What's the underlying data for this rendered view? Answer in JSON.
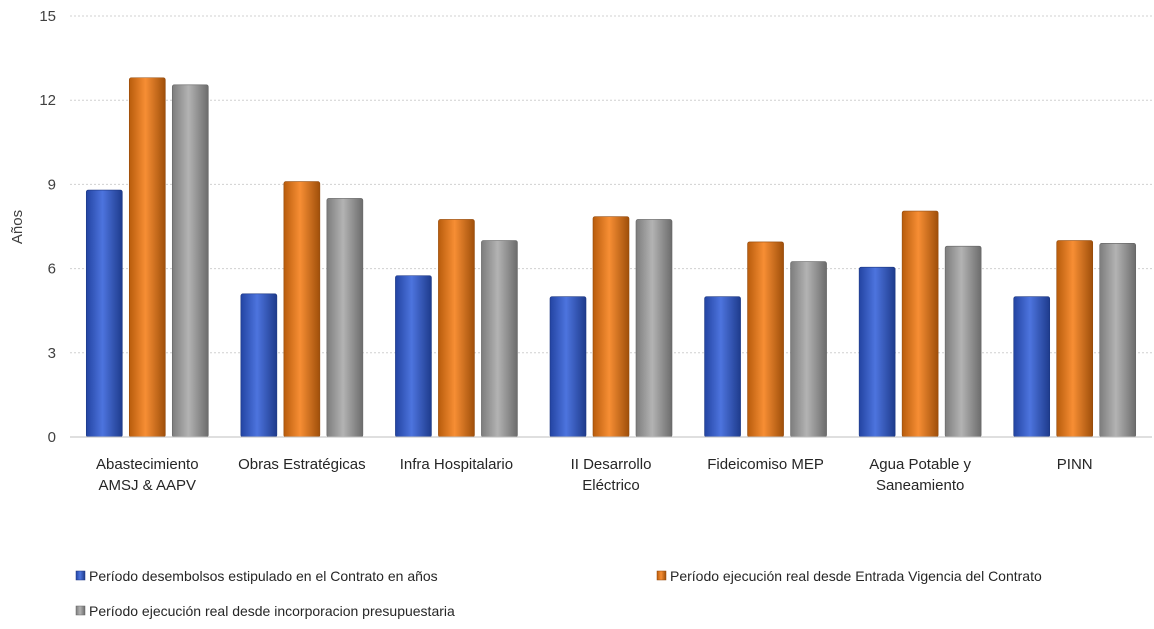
{
  "chart_data": {
    "type": "bar",
    "title": "",
    "xlabel": "",
    "ylabel": "Años",
    "ylim": [
      0,
      15
    ],
    "yticks": [
      0,
      3,
      6,
      9,
      12,
      15
    ],
    "grid": true,
    "legend_position": "bottom",
    "categories": [
      [
        "Abastecimiento",
        "AMSJ & AAPV"
      ],
      [
        "Obras Estratégicas"
      ],
      [
        "Infra Hospitalario"
      ],
      [
        "II Desarrollo",
        "Eléctrico"
      ],
      [
        "Fideicomiso MEP"
      ],
      [
        "Agua Potable y",
        "Saneamiento"
      ],
      [
        "PINN"
      ]
    ],
    "series": [
      {
        "name": "Período desembolsos estipulado en el Contrato en años",
        "color": "#2E5BD8",
        "values": [
          8.8,
          5.1,
          5.75,
          5.0,
          5.0,
          6.05,
          5.0
        ]
      },
      {
        "name": "Período ejecución real desde Entrada Vigencia del Contrato",
        "color": "#F57A10",
        "values": [
          12.8,
          9.1,
          7.75,
          7.85,
          6.95,
          8.05,
          7.0
        ]
      },
      {
        "name": "Período ejecución real desde incorporacion presupuestaria",
        "color": "#A6A6A6",
        "values": [
          12.55,
          8.5,
          7.0,
          7.75,
          6.25,
          6.8,
          6.9
        ]
      }
    ]
  }
}
